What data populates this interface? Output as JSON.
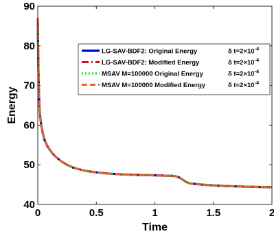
{
  "chart_data": {
    "type": "line",
    "xlabel": "Time",
    "ylabel": "Energy",
    "xlim": [
      0,
      2
    ],
    "ylim": [
      40,
      90
    ],
    "x_ticks": [
      0,
      0.5,
      1,
      1.5,
      2
    ],
    "x_tick_labels": [
      "0",
      "0.5",
      "1",
      "1.5",
      "2"
    ],
    "y_ticks": [
      40,
      50,
      60,
      70,
      80,
      90
    ],
    "y_tick_labels": [
      "40",
      "50",
      "60",
      "70",
      "80",
      "90"
    ],
    "grid": false,
    "legend_position": "top-right",
    "series": [
      {
        "name": "LG-SAV-BDF2: Original Energy",
        "legend_suffix": "δ t=2×10",
        "legend_exp": "-4",
        "color": "#0000cc",
        "style": "solid",
        "x": [
          0,
          0.002,
          0.005,
          0.01,
          0.015,
          0.02,
          0.03,
          0.04,
          0.05,
          0.06,
          0.08,
          0.1,
          0.125,
          0.15,
          0.2,
          0.25,
          0.3,
          0.4,
          0.5,
          0.6,
          0.7,
          0.8,
          0.9,
          1.0,
          1.1,
          1.15,
          1.18,
          1.2,
          1.22,
          1.24,
          1.26,
          1.28,
          1.3,
          1.4,
          1.5,
          1.6,
          1.7,
          1.8,
          1.9,
          2.0
        ],
        "y": [
          87,
          82,
          75,
          68,
          64.5,
          62.3,
          60,
          58.4,
          57.1,
          56.1,
          54.8,
          53.9,
          52.9,
          52.1,
          50.9,
          50.0,
          49.3,
          48.5,
          48.1,
          47.8,
          47.6,
          47.5,
          47.4,
          47.35,
          47.25,
          47.2,
          47.1,
          46.9,
          46.6,
          46.2,
          45.8,
          45.5,
          45.3,
          45.0,
          44.8,
          44.65,
          44.55,
          44.45,
          44.4,
          44.35
        ]
      },
      {
        "name": "LG-SAV-BDF2: Modified Energy",
        "legend_suffix": "δ t=2×10",
        "legend_exp": "-4",
        "color": "#e8001c",
        "style": "dashdot",
        "x": [
          0,
          0.002,
          0.005,
          0.01,
          0.015,
          0.02,
          0.03,
          0.04,
          0.05,
          0.06,
          0.08,
          0.1,
          0.125,
          0.15,
          0.2,
          0.25,
          0.3,
          0.4,
          0.5,
          0.6,
          0.7,
          0.8,
          0.9,
          1.0,
          1.1,
          1.15,
          1.18,
          1.2,
          1.22,
          1.24,
          1.26,
          1.28,
          1.3,
          1.4,
          1.5,
          1.6,
          1.7,
          1.8,
          1.9,
          2.0
        ],
        "y": [
          87,
          82,
          75,
          68,
          64.5,
          62.3,
          60,
          58.4,
          57.1,
          56.1,
          54.8,
          53.9,
          52.9,
          52.1,
          50.9,
          50.0,
          49.3,
          48.5,
          48.1,
          47.8,
          47.6,
          47.5,
          47.4,
          47.35,
          47.25,
          47.2,
          47.1,
          46.9,
          46.6,
          46.2,
          45.8,
          45.5,
          45.3,
          45.0,
          44.8,
          44.65,
          44.55,
          44.45,
          44.4,
          44.35
        ]
      },
      {
        "name": "MSAV M=100000 Original  Energy",
        "legend_suffix": "δ t=2×10",
        "legend_exp": "-4",
        "color": "#22dd22",
        "style": "dotted",
        "x": [
          0,
          0.002,
          0.005,
          0.01,
          0.015,
          0.02,
          0.03,
          0.04,
          0.05,
          0.06,
          0.08,
          0.1,
          0.125,
          0.15,
          0.2,
          0.25,
          0.3,
          0.4,
          0.5,
          0.6,
          0.7,
          0.8,
          0.9,
          1.0,
          1.1,
          1.15,
          1.18,
          1.2,
          1.22,
          1.24,
          1.26,
          1.28,
          1.3,
          1.4,
          1.5,
          1.6,
          1.7,
          1.8,
          1.9,
          2.0
        ],
        "y": [
          87,
          82,
          75,
          68,
          64.5,
          62.3,
          60,
          58.4,
          57.1,
          56.1,
          54.8,
          53.9,
          52.9,
          52.1,
          50.9,
          50.0,
          49.3,
          48.5,
          48.1,
          47.8,
          47.6,
          47.5,
          47.4,
          47.35,
          47.25,
          47.2,
          47.1,
          46.9,
          46.6,
          46.2,
          45.8,
          45.5,
          45.3,
          45.0,
          44.8,
          44.65,
          44.55,
          44.45,
          44.4,
          44.35
        ]
      },
      {
        "name": "MSAV M=100000 Modified Energy",
        "legend_suffix": "δ t=2×10",
        "legend_exp": "-4",
        "color": "#e8602c",
        "style": "dashed",
        "x": [
          0,
          0.002,
          0.005,
          0.01,
          0.015,
          0.02,
          0.03,
          0.04,
          0.05,
          0.06,
          0.08,
          0.1,
          0.125,
          0.15,
          0.2,
          0.25,
          0.3,
          0.4,
          0.5,
          0.6,
          0.7,
          0.8,
          0.9,
          1.0,
          1.1,
          1.15,
          1.18,
          1.2,
          1.22,
          1.24,
          1.26,
          1.28,
          1.3,
          1.4,
          1.5,
          1.6,
          1.7,
          1.8,
          1.9,
          2.0
        ],
        "y": [
          87,
          82,
          75,
          68,
          64.5,
          62.3,
          60,
          58.4,
          57.1,
          56.1,
          54.8,
          53.9,
          52.9,
          52.1,
          50.9,
          50.0,
          49.3,
          48.5,
          48.1,
          47.8,
          47.6,
          47.5,
          47.4,
          47.35,
          47.25,
          47.2,
          47.1,
          46.9,
          46.6,
          46.2,
          45.8,
          45.5,
          45.3,
          45.0,
          44.8,
          44.65,
          44.55,
          44.45,
          44.4,
          44.35
        ]
      }
    ]
  }
}
